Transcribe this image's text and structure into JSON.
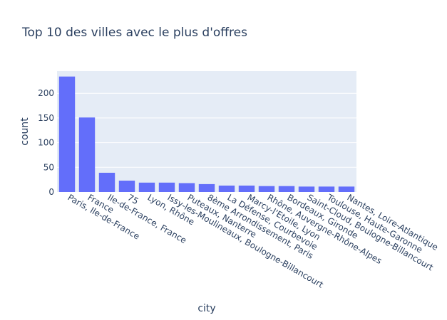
{
  "chart_data": {
    "type": "bar",
    "title": "Top 10 des villes avec le plus d'offres",
    "xlabel": "city",
    "ylabel": "count",
    "ylim": [
      0,
      245
    ],
    "yticks": [
      0,
      50,
      100,
      150,
      200
    ],
    "grid": true,
    "categories": [
      "Paris, Ile-de-France",
      "France",
      "Ile-de-France, France",
      "75",
      "Lyon, Rhône",
      "Issy-les-Moulineaux, Boulogne-Billancourt",
      "Puteaux, Nanterre",
      "8ème Arrondissement, Paris",
      "La Défense, Courbevoie",
      "Marcy-l'Etoile, Lyon",
      "Rhône, Auvergne-Rhône-Alpes",
      "Bordeaux, Gironde",
      "Saint-Cloud, Boulogne-Billancourt",
      "Toulouse, Haute-Garonne",
      "Nantes, Loire-Atlantique"
    ],
    "values": [
      234,
      151,
      39,
      23,
      19,
      19,
      18,
      16,
      13,
      13,
      12,
      12,
      11,
      11,
      11
    ],
    "colors": {
      "bar": "#636efa",
      "plot_bg": "#e5ecf6",
      "grid": "#ffffff",
      "text": "#2a3f5f"
    }
  }
}
